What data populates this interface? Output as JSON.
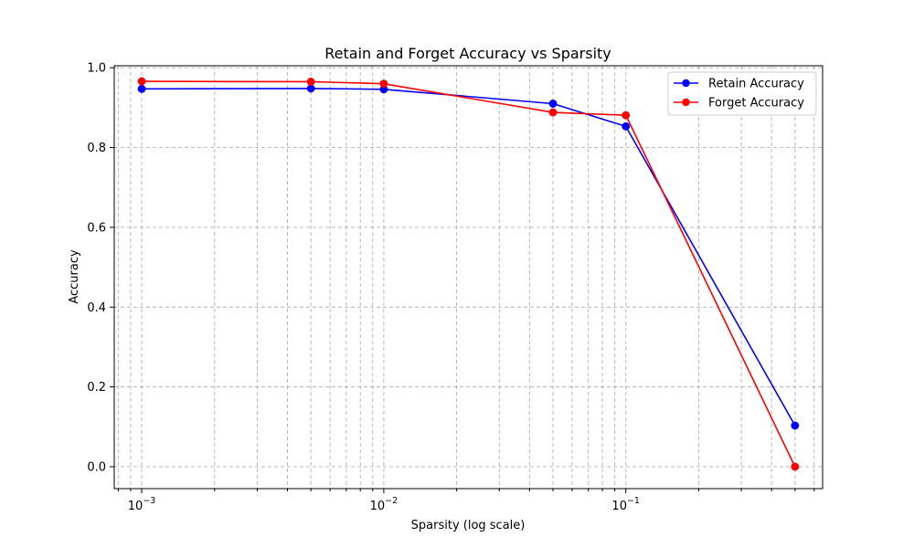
{
  "chart_data": {
    "type": "line",
    "title": "Retain and Forget Accuracy vs Sparsity",
    "xlabel": "Sparsity (log scale)",
    "ylabel": "Accuracy",
    "xscale": "log",
    "xlim": [
      0.00077,
      0.65
    ],
    "ylim": [
      -0.055,
      1.005
    ],
    "x": [
      0.001,
      0.005,
      0.01,
      0.05,
      0.1,
      0.5
    ],
    "series": [
      {
        "name": "Retain Accuracy",
        "color": "#0000ff",
        "marker": "circle",
        "values": [
          0.947,
          0.948,
          0.946,
          0.91,
          0.853,
          0.103
        ]
      },
      {
        "name": "Forget Accuracy",
        "color": "#ff0000",
        "marker": "circle",
        "values": [
          0.966,
          0.965,
          0.96,
          0.888,
          0.881,
          0.0
        ]
      }
    ],
    "x_major_ticks": [
      {
        "value": 0.001,
        "base": "10",
        "exp": "−3"
      },
      {
        "value": 0.01,
        "base": "10",
        "exp": "−2"
      },
      {
        "value": 0.1,
        "base": "10",
        "exp": "−1"
      }
    ],
    "y_ticks": [
      {
        "value": 0.0,
        "label": "0.0"
      },
      {
        "value": 0.2,
        "label": "0.2"
      },
      {
        "value": 0.4,
        "label": "0.4"
      },
      {
        "value": 0.6,
        "label": "0.6"
      },
      {
        "value": 0.8,
        "label": "0.8"
      },
      {
        "value": 1.0,
        "label": "1.0"
      }
    ],
    "grid": true,
    "grid_style": "dashed",
    "grid_color": "#b0b0b0",
    "legend_position": "top-right"
  }
}
